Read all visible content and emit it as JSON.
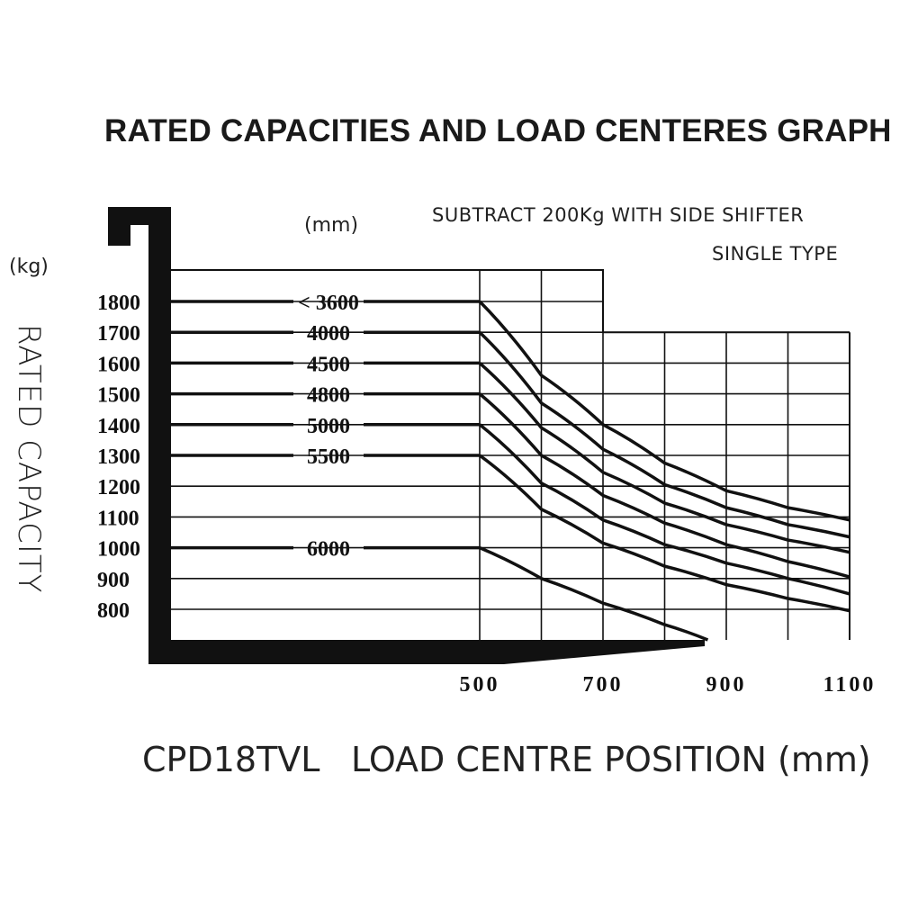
{
  "title": "RATED CAPACITIES AND LOAD CENTERES GRAPH",
  "notes": {
    "line1": "SUBTRACT  200Kg  WITH  SIDE  SHIFTER",
    "line2": "SINGLE TYPE"
  },
  "units": {
    "mast_height": "(mm)",
    "capacity": "(kg)"
  },
  "axis": {
    "y_title": "RATED CAPACITY",
    "x_model": "CPD18TVL",
    "x_title": "LOAD  CENTRE  POSITION (mm)"
  },
  "chart_data": {
    "type": "line",
    "title": "RATED CAPACITIES AND LOAD CENTERES GRAPH",
    "subtitle": "SUBTRACT 200Kg WITH SIDE SHIFTER / SINGLE TYPE",
    "xlabel": "LOAD CENTRE POSITION (mm)",
    "ylabel": "RATED CAPACITY (kg)",
    "model": "CPD18TVL",
    "x_ticks": [
      "500",
      "700",
      "900",
      "1100"
    ],
    "y_ticks": [
      "1800",
      "1700",
      "1600",
      "1500",
      "1400",
      "1300",
      "1200",
      "1100",
      "1000",
      "900",
      "800"
    ],
    "xlim": [
      500,
      1100
    ],
    "ylim": [
      700,
      1800
    ],
    "grid": true,
    "legend_position": "inline labels (mast height, mm)",
    "x": [
      500,
      600,
      700,
      800,
      900,
      1000,
      1100
    ],
    "series": [
      {
        "name": "< 3600",
        "values": [
          1800,
          1560,
          1400,
          1275,
          1185,
          1130,
          1090
        ]
      },
      {
        "name": "4000",
        "values": [
          1700,
          1470,
          1320,
          1205,
          1130,
          1075,
          1035
        ]
      },
      {
        "name": "4500",
        "values": [
          1600,
          1390,
          1245,
          1145,
          1075,
          1025,
          985
        ]
      },
      {
        "name": "4800",
        "values": [
          1500,
          1300,
          1170,
          1080,
          1010,
          955,
          905
        ]
      },
      {
        "name": "5000",
        "values": [
          1400,
          1210,
          1090,
          1010,
          950,
          900,
          850
        ]
      },
      {
        "name": "5500",
        "values": [
          1300,
          1125,
          1015,
          940,
          880,
          835,
          795
        ]
      },
      {
        "name": "6000",
        "values": [
          1000,
          900,
          820,
          750,
          null,
          null,
          null
        ]
      }
    ]
  }
}
